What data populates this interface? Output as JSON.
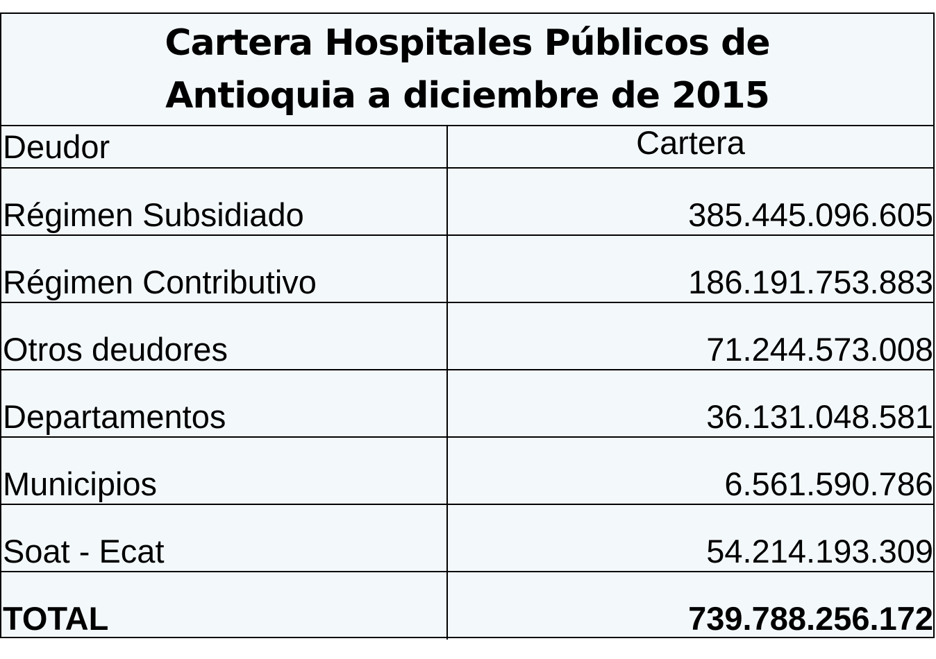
{
  "title": {
    "line1": "Cartera Hospitales Públicos de",
    "line2": "Antioquia a diciembre de 2015"
  },
  "table": {
    "header": {
      "deudor": "Deudor",
      "cartera": "Cartera"
    },
    "rows": [
      {
        "deudor": "Régimen Subsidiado",
        "cartera": "385.445.096.605"
      },
      {
        "deudor": "Régimen Contributivo",
        "cartera": "186.191.753.883"
      },
      {
        "deudor": "Otros deudores",
        "cartera": "71.244.573.008"
      },
      {
        "deudor": "Departamentos",
        "cartera": "36.131.048.581"
      },
      {
        "deudor": "Municipios",
        "cartera": "6.561.590.786"
      },
      {
        "deudor": "Soat - Ecat",
        "cartera": "54.214.193.309"
      }
    ],
    "total": {
      "deudor": "TOTAL",
      "cartera": "739.788.256.172"
    }
  }
}
